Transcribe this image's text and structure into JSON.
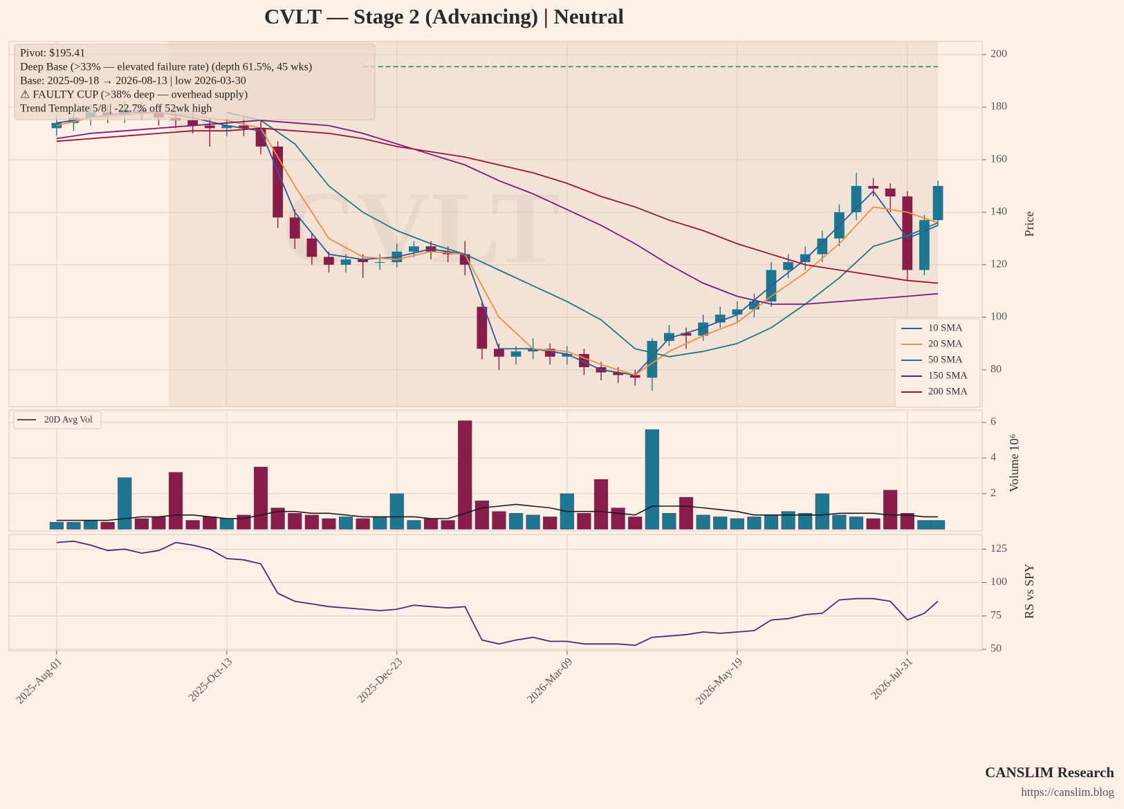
{
  "title": "CVLT  —  Stage 2 (Advancing)  |  Neutral",
  "watermark": "CVLT",
  "footer": {
    "brand": "CANSLIM Research",
    "url": "https://canslim.blog"
  },
  "chart_data": [
    {
      "type": "candlestick",
      "ylabel": "Price",
      "grid": true,
      "legend": "lower right",
      "annotations": [
        "Pivot: $195.41",
        "Deep Base (>33% — elevated failure rate)  (depth 61.5%, 45 wks)",
        "Base: 2025-09-18 → 2026-08-13  |  low 2026-03-30",
        "⚠ FAULTY CUP (>38% deep — overhead supply)",
        "Trend Template 5/8  |  -22.7% off 52wk high"
      ],
      "pivot": {
        "value": 195.41,
        "x": [
          90,
          259
        ],
        "color": "#1a9060"
      },
      "base_shade_x": [
        33,
        259
      ],
      "up_color": "#1e7790",
      "down_color": "#8a1c4a",
      "ylim": [
        66,
        205
      ],
      "yticks": [
        80,
        100,
        120,
        140,
        160,
        180,
        200
      ],
      "x": [
        0,
        5,
        10,
        15,
        20,
        25,
        30,
        35,
        40,
        45,
        50,
        55,
        60,
        65,
        70,
        75,
        80,
        85,
        90,
        95,
        100,
        105,
        110,
        115,
        120,
        125,
        130,
        135,
        140,
        145,
        150,
        155,
        160,
        165,
        170,
        175,
        180,
        185,
        190,
        195,
        200,
        205,
        210,
        215,
        220,
        225,
        230,
        235,
        240,
        245,
        250,
        255,
        259
      ],
      "open": [
        172,
        174,
        176,
        178,
        177,
        179,
        178,
        176,
        175,
        173,
        172,
        173,
        172,
        165,
        138,
        130,
        123,
        120,
        122,
        121,
        121,
        125,
        127,
        125,
        124,
        104,
        88,
        85,
        87,
        88,
        85,
        86,
        81,
        79,
        78,
        77,
        91,
        94,
        93,
        98,
        101,
        103,
        106,
        118,
        121,
        124,
        130,
        140,
        150,
        149,
        146,
        118,
        137
      ],
      "high": [
        177,
        179,
        181,
        181,
        182,
        182,
        181,
        179,
        178,
        176,
        176,
        176,
        175,
        167,
        141,
        132,
        125,
        124,
        124,
        124,
        128,
        129,
        129,
        127,
        129,
        106,
        90,
        89,
        92,
        90,
        89,
        88,
        83,
        81,
        80,
        92,
        97,
        96,
        101,
        104,
        106,
        109,
        121,
        124,
        127,
        133,
        143,
        155,
        153,
        151,
        148,
        139,
        152
      ],
      "low": [
        169,
        171,
        173,
        174,
        174,
        175,
        173,
        172,
        170,
        165,
        169,
        169,
        162,
        134,
        126,
        120,
        117,
        117,
        115,
        118,
        119,
        123,
        122,
        121,
        116,
        84,
        80,
        82,
        84,
        82,
        82,
        78,
        76,
        75,
        74,
        72,
        89,
        88,
        91,
        96,
        98,
        100,
        104,
        115,
        118,
        121,
        127,
        137,
        146,
        140,
        114,
        116,
        135
      ],
      "close": [
        174,
        176,
        178,
        177,
        179,
        178,
        176,
        175,
        173,
        172,
        173,
        172,
        165,
        138,
        130,
        123,
        120,
        122,
        121,
        121,
        125,
        127,
        125,
        124,
        120,
        88,
        85,
        87,
        88,
        85,
        86,
        81,
        79,
        78,
        77,
        91,
        94,
        93,
        98,
        101,
        103,
        106,
        118,
        121,
        124,
        130,
        140,
        150,
        149,
        146,
        118,
        137,
        150
      ],
      "overlays": [
        {
          "name": "10 SMA",
          "color": "#2a5a9a",
          "x": [
            0,
            10,
            20,
            30,
            40,
            50,
            60,
            70,
            80,
            90,
            100,
            110,
            120,
            130,
            140,
            150,
            160,
            170,
            180,
            190,
            200,
            210,
            220,
            230,
            240,
            250,
            259
          ],
          "values": [
            174,
            176,
            178,
            178,
            176,
            173,
            171,
            140,
            124,
            122,
            123,
            126,
            124,
            88,
            88,
            86,
            80,
            78,
            92,
            96,
            101,
            112,
            122,
            135,
            148,
            130,
            135
          ]
        },
        {
          "name": "20 SMA",
          "color": "#f58b3b",
          "x": [
            0,
            10,
            20,
            30,
            40,
            50,
            60,
            70,
            80,
            90,
            100,
            110,
            120,
            130,
            140,
            150,
            160,
            170,
            180,
            190,
            200,
            210,
            220,
            230,
            240,
            250,
            259
          ],
          "values": [
            173,
            176,
            177,
            178,
            177,
            175,
            172,
            150,
            130,
            123,
            122,
            125,
            124,
            100,
            88,
            87,
            82,
            78,
            87,
            93,
            98,
            108,
            117,
            128,
            142,
            140,
            136
          ]
        },
        {
          "name": "50 SMA",
          "color": "#1a7a80",
          "x": [
            0,
            10,
            20,
            30,
            40,
            50,
            60,
            70,
            80,
            90,
            100,
            110,
            120,
            130,
            140,
            150,
            160,
            170,
            180,
            190,
            200,
            210,
            220,
            230,
            240,
            250,
            259
          ],
          "values": [
            null,
            null,
            null,
            null,
            null,
            178,
            175,
            166,
            150,
            140,
            133,
            128,
            124,
            118,
            112,
            106,
            99,
            88,
            85,
            87,
            90,
            96,
            105,
            115,
            127,
            131,
            136
          ]
        },
        {
          "name": "150 SMA",
          "color": "#7a1a7a",
          "x": [
            0,
            10,
            20,
            30,
            40,
            50,
            60,
            70,
            80,
            90,
            100,
            110,
            120,
            130,
            140,
            150,
            160,
            170,
            180,
            190,
            200,
            210,
            220,
            230,
            240,
            250,
            259
          ],
          "values": [
            168,
            170,
            171,
            172,
            173,
            174,
            175,
            174,
            173,
            170,
            166,
            162,
            158,
            152,
            147,
            141,
            135,
            128,
            120,
            113,
            108,
            105,
            105,
            106,
            107,
            108,
            109
          ]
        },
        {
          "name": "200 SMA",
          "color": "#a0103a",
          "x": [
            0,
            10,
            20,
            30,
            40,
            50,
            60,
            70,
            80,
            90,
            100,
            110,
            120,
            130,
            140,
            150,
            160,
            170,
            180,
            190,
            200,
            210,
            220,
            230,
            240,
            250,
            259
          ],
          "values": [
            167,
            168,
            169,
            170,
            171,
            171,
            172,
            171,
            170,
            168,
            165,
            163,
            161,
            158,
            155,
            151,
            146,
            142,
            137,
            133,
            128,
            124,
            120,
            118,
            116,
            114,
            113
          ]
        }
      ]
    },
    {
      "type": "bar",
      "ylabel": "Volume",
      "offset_label": "10⁶",
      "grid": true,
      "legend": "upper left",
      "ylim": [
        -0.1,
        6.7
      ],
      "yticks": [
        2,
        4,
        6
      ],
      "x": [
        0,
        5,
        10,
        15,
        20,
        25,
        30,
        35,
        40,
        45,
        50,
        55,
        60,
        65,
        70,
        75,
        80,
        85,
        90,
        95,
        100,
        105,
        110,
        115,
        120,
        125,
        130,
        135,
        140,
        145,
        150,
        155,
        160,
        165,
        170,
        175,
        180,
        185,
        190,
        195,
        200,
        205,
        210,
        215,
        220,
        225,
        230,
        235,
        240,
        245,
        250,
        255,
        259
      ],
      "values": [
        0.4,
        0.4,
        0.5,
        0.4,
        2.9,
        0.6,
        0.7,
        3.2,
        0.5,
        0.7,
        0.6,
        0.8,
        3.5,
        1.2,
        0.9,
        0.8,
        0.6,
        0.7,
        0.6,
        0.7,
        2.0,
        0.5,
        0.6,
        0.5,
        6.1,
        1.6,
        1.0,
        0.9,
        0.8,
        0.7,
        2.0,
        0.9,
        2.8,
        1.2,
        0.7,
        5.6,
        0.9,
        1.8,
        0.8,
        0.7,
        0.6,
        0.7,
        0.8,
        1.0,
        0.9,
        2.0,
        0.8,
        0.7,
        0.6,
        2.2,
        0.9,
        0.5,
        0.5
      ],
      "avg": {
        "name": "20D Avg Vol",
        "color": "#1a1a1a",
        "values": [
          0.5,
          0.5,
          0.5,
          0.5,
          0.6,
          0.7,
          0.7,
          0.8,
          0.8,
          0.7,
          0.6,
          0.6,
          0.8,
          1.0,
          1.0,
          0.9,
          0.9,
          0.8,
          0.7,
          0.7,
          0.7,
          0.7,
          0.6,
          0.6,
          0.9,
          1.2,
          1.3,
          1.4,
          1.3,
          1.2,
          1.0,
          1.0,
          1.0,
          0.9,
          0.8,
          1.3,
          1.3,
          1.3,
          1.2,
          1.1,
          1.0,
          0.8,
          0.8,
          0.8,
          0.8,
          0.8,
          0.9,
          0.9,
          0.9,
          0.8,
          0.8,
          0.7,
          0.7
        ]
      }
    },
    {
      "type": "line",
      "ylabel": "RS vs SPY",
      "grid": true,
      "ylim": [
        49,
        136
      ],
      "yticks": [
        50,
        75,
        100,
        125
      ],
      "xlim": [
        -14,
        272
      ],
      "xticks": [
        {
          "value": 0,
          "label": "2025-Aug-01"
        },
        {
          "value": 50,
          "label": "2025-Oct-13"
        },
        {
          "value": 100,
          "label": "2025-Dec-23"
        },
        {
          "value": 150,
          "label": "2026-Mar-09"
        },
        {
          "value": 200,
          "label": "2026-May-19"
        },
        {
          "value": 250,
          "label": "2026-Jul-31"
        }
      ],
      "x": [
        0,
        5,
        10,
        15,
        20,
        25,
        30,
        35,
        40,
        45,
        50,
        55,
        60,
        65,
        70,
        75,
        80,
        85,
        90,
        95,
        100,
        105,
        110,
        115,
        120,
        125,
        130,
        135,
        140,
        145,
        150,
        155,
        160,
        165,
        170,
        175,
        180,
        185,
        190,
        195,
        200,
        205,
        210,
        215,
        220,
        225,
        230,
        235,
        240,
        245,
        250,
        255,
        259
      ],
      "series": [
        {
          "color": "#4a2a7a",
          "values": [
            130,
            131,
            128,
            124,
            125,
            122,
            124,
            130,
            128,
            125,
            118,
            117,
            114,
            92,
            86,
            84,
            82,
            81,
            80,
            79,
            80,
            83,
            82,
            81,
            82,
            57,
            54,
            57,
            59,
            56,
            56,
            54,
            54,
            54,
            53,
            59,
            60,
            61,
            63,
            62,
            63,
            64,
            72,
            73,
            76,
            77,
            87,
            88,
            88,
            86,
            72,
            77,
            86
          ]
        }
      ]
    }
  ]
}
